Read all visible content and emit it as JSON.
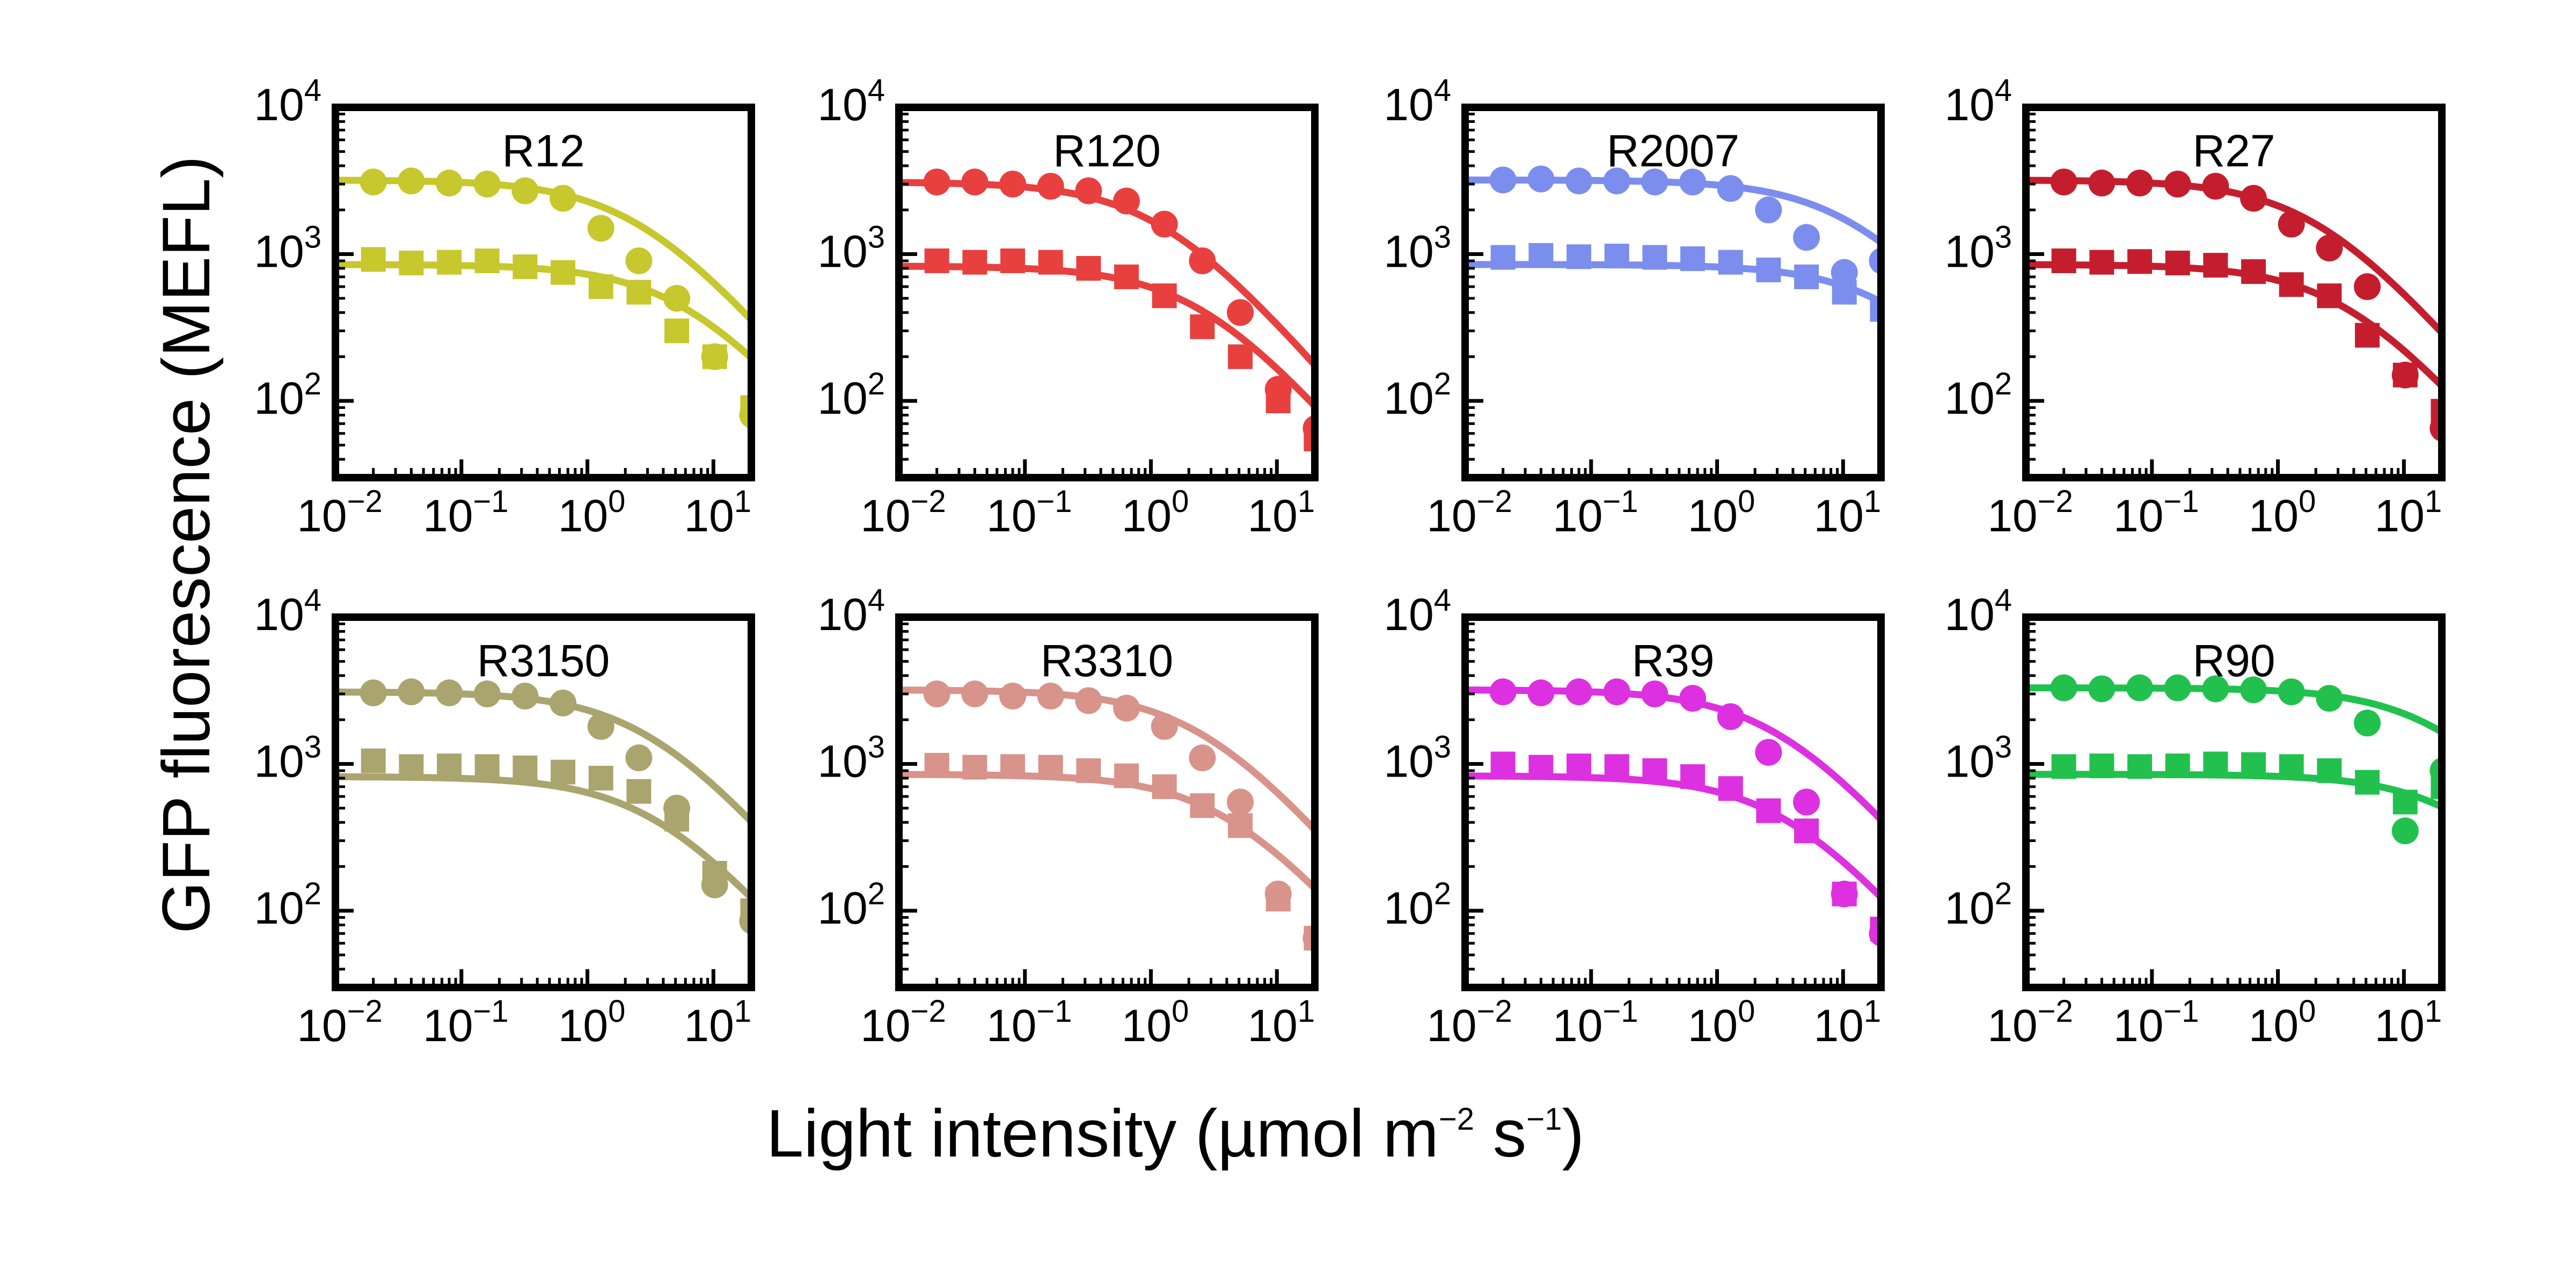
{
  "figure": {
    "ylabel": "GFP fluorescence (MEFL)",
    "xlabel": "Light intensity (µmol m",
    "xlabel_exp1": "−2",
    "xlabel_mid": " s",
    "xlabel_exp2": "−1",
    "xlabel_end": ")"
  },
  "chart_data": [
    {
      "type": "scatter",
      "title": "R12",
      "color": "#c7c72e",
      "xscale": "log",
      "yscale": "log",
      "xlim": [
        0.01,
        20
      ],
      "ylim": [
        30,
        10000
      ],
      "x_ticks": [
        0.01,
        0.1,
        1,
        10
      ],
      "y_ticks": [
        100,
        1000,
        10000
      ],
      "series": [
        {
          "marker": "circle",
          "x": [
            0.02,
            0.04,
            0.08,
            0.16,
            0.32,
            0.64,
            1.28,
            2.56,
            5.12,
            10.24,
            20.48
          ],
          "y": [
            3100,
            3150,
            3050,
            3000,
            2700,
            2400,
            1500,
            900,
            500,
            200,
            80
          ]
        },
        {
          "marker": "square",
          "x": [
            0.02,
            0.04,
            0.08,
            0.16,
            0.32,
            0.64,
            1.28,
            2.56,
            5.12,
            10.24,
            20.48
          ],
          "y": [
            920,
            870,
            880,
            900,
            820,
            750,
            600,
            550,
            300,
            200,
            90
          ]
        },
        {
          "marker": "line",
          "x": [
            0.01,
            20
          ],
          "ymax": 3200,
          "k": 2.5,
          "n": 1
        },
        {
          "marker": "line",
          "x": [
            0.01,
            20
          ],
          "ymax": 850,
          "k": 6,
          "n": 1
        }
      ]
    },
    {
      "type": "scatter",
      "title": "R120",
      "color": "#e8403f",
      "xscale": "log",
      "yscale": "log",
      "xlim": [
        0.01,
        20
      ],
      "ylim": [
        30,
        10000
      ],
      "x_ticks": [
        0.01,
        0.1,
        1,
        10
      ],
      "y_ticks": [
        100,
        1000,
        10000
      ],
      "series": [
        {
          "marker": "circle",
          "x": [
            0.02,
            0.04,
            0.08,
            0.16,
            0.32,
            0.64,
            1.28,
            2.56,
            5.12,
            10.24,
            20.48
          ],
          "y": [
            3100,
            3100,
            3000,
            2900,
            2700,
            2300,
            1600,
            900,
            400,
            120,
            65
          ]
        },
        {
          "marker": "square",
          "x": [
            0.02,
            0.04,
            0.08,
            0.16,
            0.32,
            0.64,
            1.28,
            2.56,
            5.12,
            10.24,
            20.48
          ],
          "y": [
            900,
            880,
            900,
            880,
            800,
            700,
            520,
            320,
            200,
            100,
            55
          ]
        },
        {
          "marker": "line",
          "x": [
            0.01,
            20
          ],
          "ymax": 3100,
          "k": 1.2,
          "n": 1
        },
        {
          "marker": "line",
          "x": [
            0.01,
            20
          ],
          "ymax": 830,
          "k": 2.5,
          "n": 1
        }
      ]
    },
    {
      "type": "scatter",
      "title": "R2007",
      "color": "#7b8eed",
      "xscale": "log",
      "yscale": "log",
      "xlim": [
        0.01,
        20
      ],
      "ylim": [
        30,
        10000
      ],
      "x_ticks": [
        0.01,
        0.1,
        1,
        10
      ],
      "y_ticks": [
        100,
        1000,
        10000
      ],
      "series": [
        {
          "marker": "circle",
          "x": [
            0.02,
            0.04,
            0.08,
            0.16,
            0.32,
            0.64,
            1.28,
            2.56,
            5.12,
            10.24,
            20.48
          ],
          "y": [
            3200,
            3250,
            3150,
            3150,
            3100,
            3100,
            2800,
            2000,
            1300,
            750,
            900
          ]
        },
        {
          "marker": "square",
          "x": [
            0.02,
            0.04,
            0.08,
            0.16,
            0.32,
            0.64,
            1.28,
            2.56,
            5.12,
            10.24,
            20.48
          ],
          "y": [
            950,
            980,
            960,
            970,
            950,
            930,
            880,
            780,
            700,
            550,
            420
          ]
        },
        {
          "marker": "line",
          "x": [
            0.01,
            20
          ],
          "ymax": 3200,
          "k": 12,
          "n": 1
        },
        {
          "marker": "line",
          "x": [
            0.01,
            20
          ],
          "ymax": 850,
          "k": 25,
          "n": 1
        }
      ]
    },
    {
      "type": "scatter",
      "title": "R27",
      "color": "#c41e2e",
      "xscale": "log",
      "yscale": "log",
      "xlim": [
        0.01,
        20
      ],
      "ylim": [
        30,
        10000
      ],
      "x_ticks": [
        0.01,
        0.1,
        1,
        10
      ],
      "y_ticks": [
        100,
        1000,
        10000
      ],
      "series": [
        {
          "marker": "circle",
          "x": [
            0.02,
            0.04,
            0.08,
            0.16,
            0.32,
            0.64,
            1.28,
            2.56,
            5.12,
            10.24,
            20.48
          ],
          "y": [
            3100,
            3050,
            3050,
            3000,
            2900,
            2400,
            1600,
            1100,
            600,
            150,
            65
          ]
        },
        {
          "marker": "square",
          "x": [
            0.02,
            0.04,
            0.08,
            0.16,
            0.32,
            0.64,
            1.28,
            2.56,
            5.12,
            10.24,
            20.48
          ],
          "y": [
            900,
            880,
            890,
            870,
            840,
            760,
            620,
            520,
            280,
            150,
            85
          ]
        },
        {
          "marker": "line",
          "x": [
            0.01,
            20
          ],
          "ymax": 3200,
          "k": 2,
          "n": 1
        },
        {
          "marker": "line",
          "x": [
            0.01,
            20
          ],
          "ymax": 850,
          "k": 3.5,
          "n": 1
        }
      ]
    },
    {
      "type": "scatter",
      "title": "R3150",
      "color": "#aaa46e",
      "xscale": "log",
      "yscale": "log",
      "xlim": [
        0.01,
        20
      ],
      "ylim": [
        30,
        10000
      ],
      "x_ticks": [
        0.01,
        0.1,
        1,
        10
      ],
      "y_ticks": [
        100,
        1000,
        10000
      ],
      "series": [
        {
          "marker": "circle",
          "x": [
            0.02,
            0.04,
            0.08,
            0.16,
            0.32,
            0.64,
            1.28,
            2.56,
            5.12,
            10.24,
            20.48
          ],
          "y": [
            3050,
            3100,
            3050,
            3000,
            2900,
            2600,
            1800,
            1100,
            500,
            150,
            85
          ]
        },
        {
          "marker": "square",
          "x": [
            0.02,
            0.04,
            0.08,
            0.16,
            0.32,
            0.64,
            1.28,
            2.56,
            5.12,
            10.24,
            20.48
          ],
          "y": [
            1050,
            960,
            970,
            960,
            940,
            880,
            800,
            650,
            420,
            180,
            100
          ]
        },
        {
          "marker": "line",
          "x": [
            0.01,
            20
          ],
          "ymax": 3100,
          "k": 3,
          "n": 1
        },
        {
          "marker": "line",
          "x": [
            0.01,
            20
          ],
          "ymax": 820,
          "k": 3.5,
          "n": 1
        }
      ]
    },
    {
      "type": "scatter",
      "title": "R3310",
      "color": "#d8938a",
      "xscale": "log",
      "yscale": "log",
      "xlim": [
        0.01,
        20
      ],
      "ylim": [
        30,
        10000
      ],
      "x_ticks": [
        0.01,
        0.1,
        1,
        10
      ],
      "y_ticks": [
        100,
        1000,
        10000
      ],
      "series": [
        {
          "marker": "circle",
          "x": [
            0.02,
            0.04,
            0.08,
            0.16,
            0.32,
            0.64,
            1.28,
            2.56,
            5.12,
            10.24,
            20.48
          ],
          "y": [
            3000,
            3000,
            2900,
            2900,
            2700,
            2400,
            1800,
            1100,
            550,
            130,
            65
          ]
        },
        {
          "marker": "square",
          "x": [
            0.02,
            0.04,
            0.08,
            0.16,
            0.32,
            0.64,
            1.28,
            2.56,
            5.12,
            10.24,
            20.48
          ],
          "y": [
            980,
            950,
            960,
            950,
            900,
            830,
            700,
            520,
            380,
            120,
            65
          ]
        },
        {
          "marker": "line",
          "x": [
            0.01,
            20
          ],
          "ymax": 3200,
          "k": 2.5,
          "n": 1
        },
        {
          "marker": "line",
          "x": [
            0.01,
            20
          ],
          "ymax": 850,
          "k": 4,
          "n": 1
        }
      ]
    },
    {
      "type": "scatter",
      "title": "R39",
      "color": "#dd30e0",
      "xscale": "log",
      "yscale": "log",
      "xlim": [
        0.01,
        20
      ],
      "ylim": [
        30,
        10000
      ],
      "x_ticks": [
        0.01,
        0.1,
        1,
        10
      ],
      "y_ticks": [
        100,
        1000,
        10000
      ],
      "series": [
        {
          "marker": "circle",
          "x": [
            0.02,
            0.04,
            0.08,
            0.16,
            0.32,
            0.64,
            1.28,
            2.56,
            5.12,
            10.24,
            20.48
          ],
          "y": [
            3100,
            3050,
            3100,
            3100,
            3000,
            2800,
            2100,
            1200,
            550,
            130,
            70
          ]
        },
        {
          "marker": "square",
          "x": [
            0.02,
            0.04,
            0.08,
            0.16,
            0.32,
            0.64,
            1.28,
            2.56,
            5.12,
            10.24,
            20.48
          ],
          "y": [
            1000,
            950,
            970,
            960,
            900,
            820,
            680,
            480,
            350,
            130,
            75
          ]
        },
        {
          "marker": "line",
          "x": [
            0.01,
            20
          ],
          "ymax": 3200,
          "k": 3,
          "n": 1
        },
        {
          "marker": "line",
          "x": [
            0.01,
            20
          ],
          "ymax": 830,
          "k": 3.5,
          "n": 1
        }
      ]
    },
    {
      "type": "scatter",
      "title": "R90",
      "color": "#22c14e",
      "xscale": "log",
      "yscale": "log",
      "xlim": [
        0.01,
        20
      ],
      "ylim": [
        30,
        10000
      ],
      "x_ticks": [
        0.01,
        0.1,
        1,
        10
      ],
      "y_ticks": [
        100,
        1000,
        10000
      ],
      "series": [
        {
          "marker": "circle",
          "x": [
            0.02,
            0.04,
            0.08,
            0.16,
            0.32,
            0.64,
            1.28,
            2.56,
            5.12,
            10.24,
            20.48
          ],
          "y": [
            3300,
            3250,
            3300,
            3300,
            3250,
            3200,
            3100,
            2800,
            1900,
            350,
            900
          ]
        },
        {
          "marker": "square",
          "x": [
            0.02,
            0.04,
            0.08,
            0.16,
            0.32,
            0.64,
            1.28,
            2.56,
            5.12,
            10.24,
            20.48
          ],
          "y": [
            960,
            970,
            960,
            970,
            1000,
            990,
            960,
            900,
            750,
            550,
            700
          ]
        },
        {
          "marker": "line",
          "x": [
            0.01,
            20
          ],
          "ymax": 3300,
          "k": 20,
          "n": 1
        },
        {
          "marker": "line",
          "x": [
            0.01,
            20
          ],
          "ymax": 850,
          "k": 30,
          "n": 1
        }
      ]
    }
  ]
}
